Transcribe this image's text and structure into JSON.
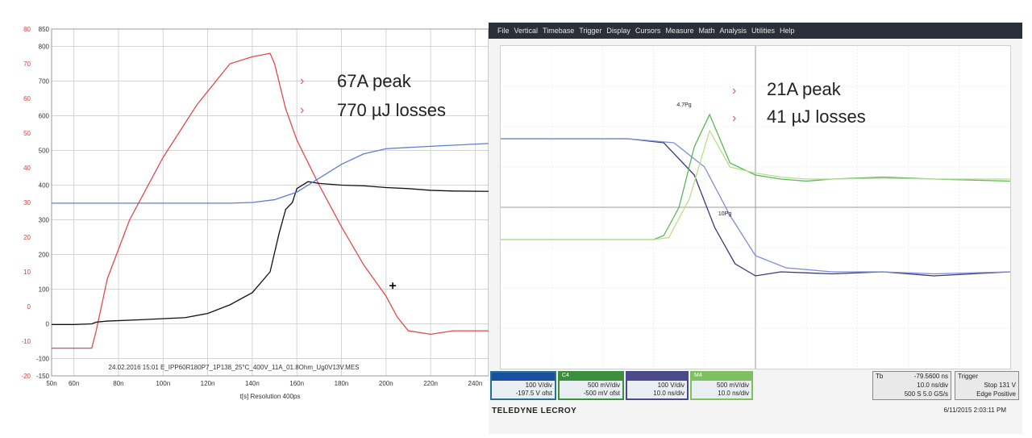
{
  "chart_data": [
    {
      "type": "line",
      "grid": true,
      "x_tick_labels": [
        "50n",
        "60n",
        "80n",
        "100n",
        "120n",
        "140n",
        "160n",
        "180n",
        "200n",
        "220n",
        "240n"
      ],
      "left_axis_ticks": [
        "80",
        "70",
        "60",
        "50",
        "40",
        "30",
        "20",
        "10",
        "0",
        "-10",
        "-20"
      ],
      "right_axis_ticks": [
        "850",
        "800",
        "700",
        "600",
        "500",
        "400",
        "300",
        "200",
        "100",
        "0",
        "-100",
        "-150"
      ],
      "xlabel": "t[s]  Resolution 400ps",
      "footer": "24.02.2016 15:01   E_IPP60R180P7_1P138_25°C_400V_11A_01.8Ohm_Ug0V13V.MES",
      "xlim": [
        50,
        246
      ],
      "ylim_left": [
        -20,
        80
      ],
      "ylim_right": [
        -150,
        850
      ],
      "series": [
        {
          "color": "#e24a4a",
          "axis": "left",
          "x": [
            50,
            62,
            68,
            70,
            75,
            85,
            100,
            115,
            130,
            140,
            148,
            150,
            155,
            160,
            170,
            180,
            190,
            200,
            205,
            210,
            220,
            230,
            246
          ],
          "y": [
            -12,
            -12,
            -12,
            -7,
            8,
            25,
            43,
            58,
            70,
            72,
            73,
            70,
            57,
            48,
            35,
            23,
            12,
            3,
            -3,
            -7,
            -8,
            -7,
            -7
          ]
        },
        {
          "color": "#111111",
          "axis": "right",
          "x": [
            50,
            60,
            68,
            70,
            75,
            90,
            110,
            120,
            130,
            140,
            148,
            152,
            155,
            158,
            160,
            165,
            170,
            180,
            190,
            200,
            210,
            220,
            230,
            246
          ],
          "y": [
            -2,
            -2,
            0,
            5,
            8,
            12,
            18,
            30,
            55,
            90,
            150,
            260,
            330,
            350,
            390,
            410,
            405,
            400,
            398,
            393,
            390,
            385,
            383,
            382
          ]
        },
        {
          "color": "#5b7fd4",
          "axis": "right",
          "x": [
            50,
            80,
            100,
            130,
            140,
            150,
            160,
            170,
            180,
            190,
            200,
            220,
            246
          ],
          "y": [
            348,
            348,
            348,
            348,
            350,
            358,
            380,
            420,
            460,
            490,
            505,
            512,
            520
          ]
        }
      ],
      "marker": {
        "x": 203,
        "y": 110
      }
    },
    {
      "type": "line",
      "grid": true,
      "ylim": [
        -4,
        4
      ],
      "xlim": [
        -5,
        5
      ],
      "markers": [
        {
          "label": "4.7Pg",
          "x": -1.4,
          "y": 2.5
        },
        {
          "label": "10Pg",
          "x": -0.6,
          "y": -0.2
        }
      ],
      "series": [
        {
          "color": "#3a3a7a",
          "x": [
            -5,
            -2.5,
            -1.8,
            -1.2,
            -0.8,
            -0.4,
            0,
            0.5,
            1.5,
            2.5,
            3.5,
            5
          ],
          "y": [
            1.7,
            1.7,
            1.6,
            0.8,
            -0.5,
            -1.4,
            -1.7,
            -1.6,
            -1.65,
            -1.6,
            -1.7,
            -1.6
          ]
        },
        {
          "color": "#7f8cd8",
          "x": [
            -5,
            -2.5,
            -1.6,
            -1,
            -0.5,
            0,
            0.6,
            1.5,
            2.5,
            3.5,
            5
          ],
          "y": [
            1.7,
            1.7,
            1.6,
            1.0,
            -0.2,
            -1.2,
            -1.5,
            -1.6,
            -1.6,
            -1.65,
            -1.6
          ]
        },
        {
          "color": "#58b85a",
          "x": [
            -5,
            -2,
            -1.8,
            -1.5,
            -1.2,
            -0.9,
            -0.5,
            0,
            0.5,
            1,
            1.5,
            2.5,
            3.5,
            5
          ],
          "y": [
            -0.8,
            -0.8,
            -0.7,
            0,
            1.5,
            2.3,
            1.1,
            0.8,
            0.7,
            0.65,
            0.7,
            0.75,
            0.7,
            0.65
          ]
        },
        {
          "color": "#b9df8a",
          "x": [
            -5,
            -2,
            -1.7,
            -1.3,
            -0.9,
            -0.5,
            0,
            0.5,
            1,
            1.5,
            2.5,
            3.5,
            5
          ],
          "y": [
            -0.8,
            -0.8,
            -0.75,
            0.2,
            1.9,
            1.0,
            0.85,
            0.75,
            0.7,
            0.7,
            0.72,
            0.7,
            0.7
          ]
        }
      ]
    }
  ],
  "annotations_left": [
    "67A peak",
    "770 µJ losses"
  ],
  "annotations_right": [
    "21A peak",
    "41 µJ losses"
  ],
  "bullet": "›",
  "scope": {
    "menu": [
      "File",
      "Vertical",
      "Timebase",
      "Trigger",
      "Display",
      "Cursors",
      "Measure",
      "Math",
      "Analysis",
      "Utilities",
      "Help"
    ],
    "channels": [
      {
        "line1": "100 V/div",
        "line2": "-197.5 V ofst"
      },
      {
        "line1": "500 mV/div",
        "line2": "-500 mV ofst"
      },
      {
        "line1": "100 V/div",
        "line2": "10.0 ns/div"
      },
      {
        "line1": "500 mV/div",
        "line2": "10.0 ns/div"
      }
    ],
    "channel_tags": [
      "C4",
      "M4"
    ],
    "timebase": {
      "label": "Tb",
      "value": "-79.5600 ns",
      "rows": [
        "10.0 ns/div",
        "500 S   5.0 GS/s"
      ]
    },
    "trigger": {
      "label": "Trigger",
      "rows": [
        "Stop   131 V",
        "Edge   Positive"
      ]
    },
    "brand": "TELEDYNE LECROY",
    "date": "6/11/2015 2:03:11 PM"
  },
  "colors": {
    "left_red": "#e24a4a",
    "left_black": "#111111",
    "left_blue": "#5b7fd4",
    "bullet": "#e05a6b",
    "menubar": "#2b2f3a"
  }
}
